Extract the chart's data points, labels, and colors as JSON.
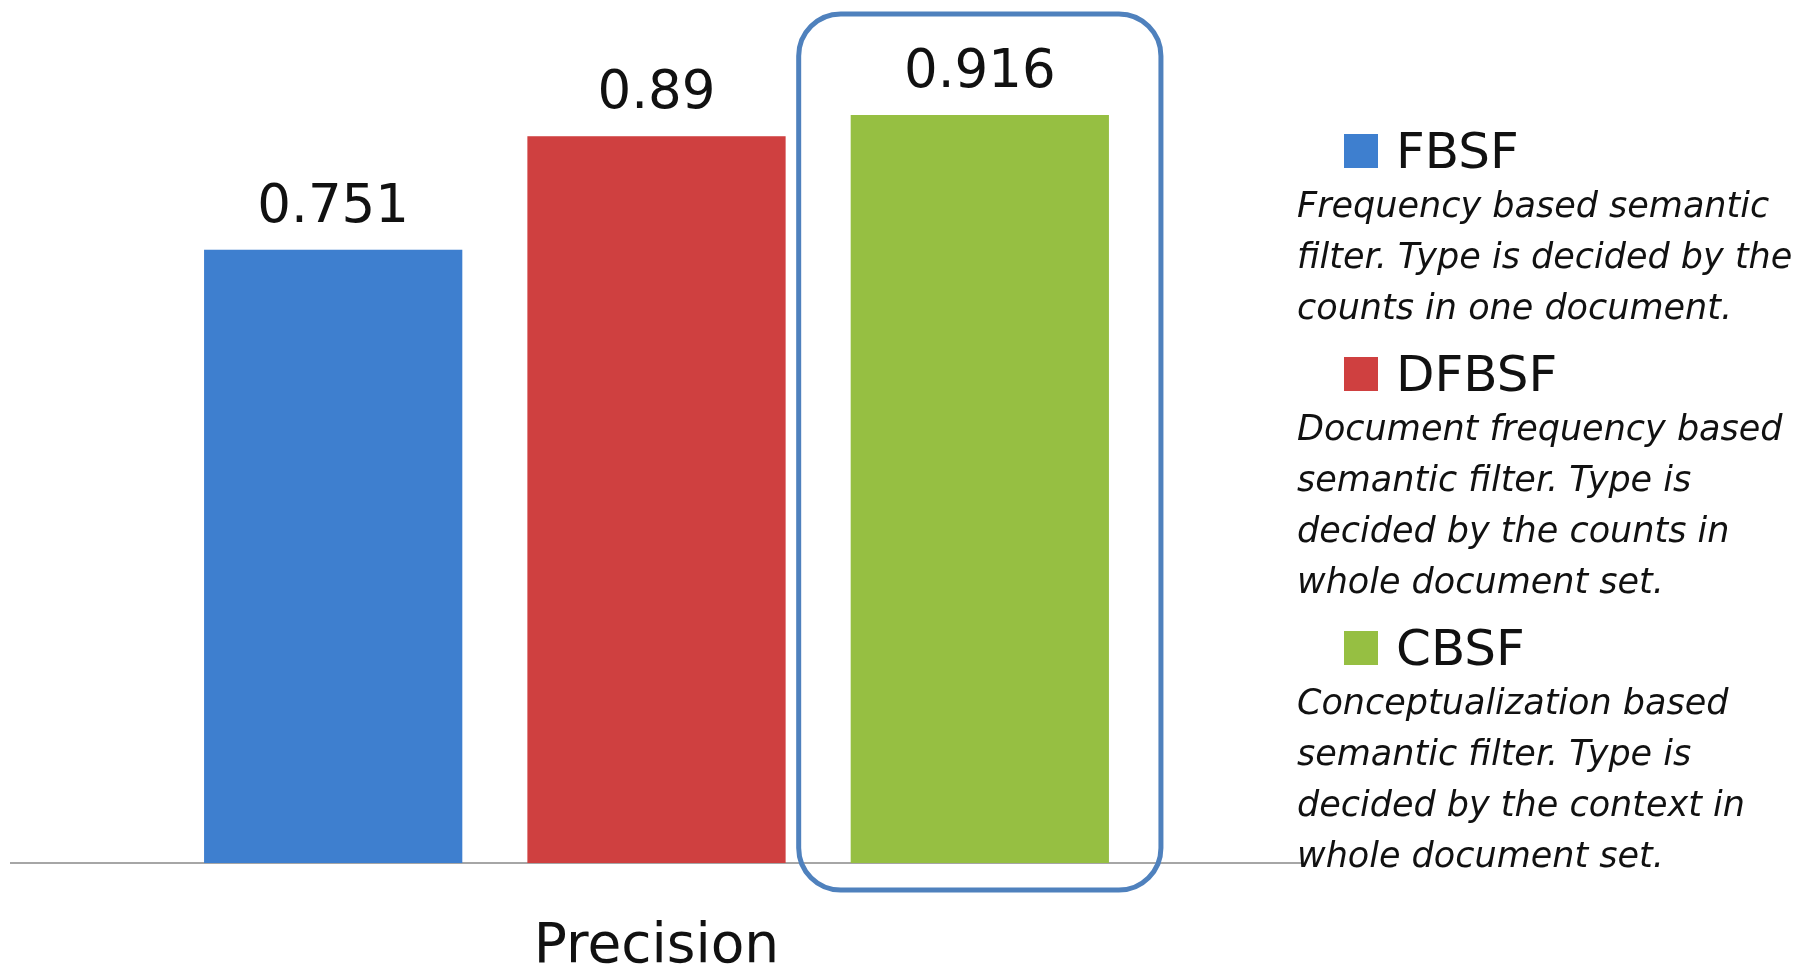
{
  "chart_data": {
    "type": "bar",
    "categories": [
      null,
      null,
      null
    ],
    "xlabel": "Precision",
    "stacked": true,
    "series": [
      {
        "name": "FBSF",
        "color": "#3e7fcf",
        "values": [
          0.751,
          null,
          null
        ]
      },
      {
        "name": "DFBSF",
        "color": "#cf4040",
        "values": [
          null,
          0.89,
          null
        ]
      },
      {
        "name": "CBSF",
        "color": "#96bf42",
        "values": [
          null,
          null,
          0.916
        ]
      }
    ],
    "data_labels": true,
    "legend": "right",
    "annotations": [
      "Frequency based semantic filter. Type is decided by the counts in one document.",
      "Document frequency based semantic filter. Type is decided by the counts in whole document set.",
      "Conceptualization based semantic filter. Type is decided by the context in whole document set."
    ]
  }
}
